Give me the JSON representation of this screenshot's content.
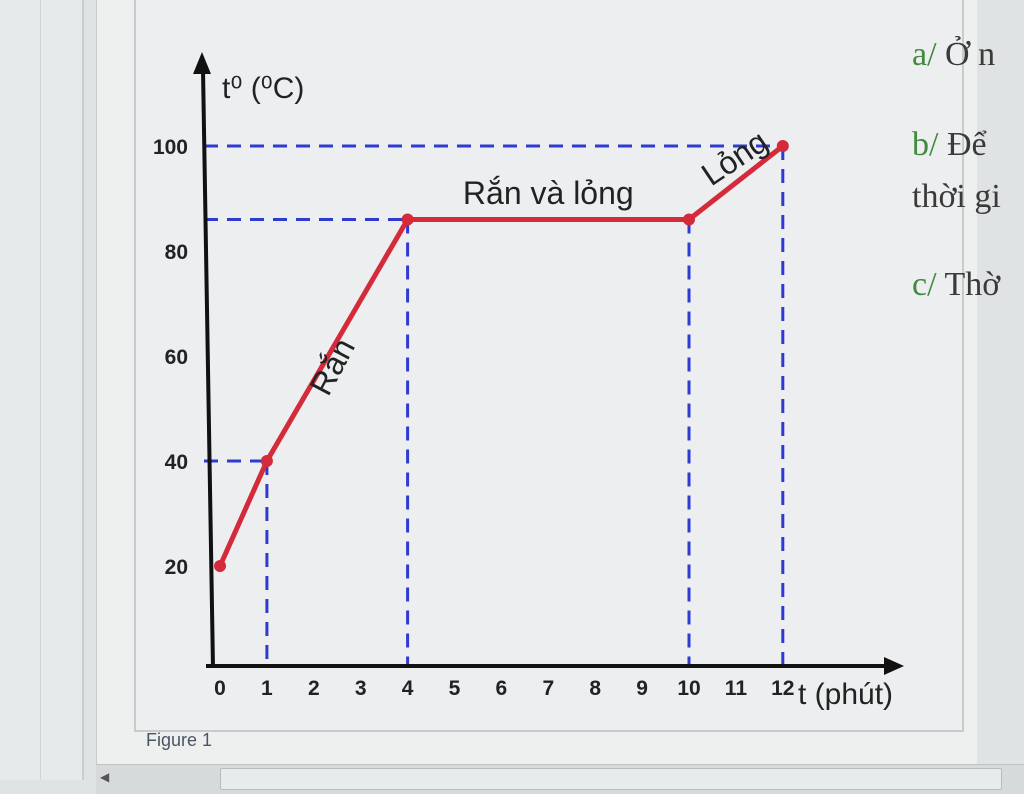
{
  "caption": "Figure 1",
  "questions": [
    {
      "label": "a/",
      "text": "Ở n"
    },
    {
      "label": "b/",
      "text": "Để"
    },
    {
      "label": "",
      "text": "thời gi"
    },
    {
      "label": "c/",
      "text": "Thờ"
    }
  ],
  "chart_data": {
    "type": "line",
    "xlabel": "t (phút)",
    "ylabel": "t⁰ (⁰C)",
    "x_ticks": [
      0,
      1,
      2,
      3,
      4,
      5,
      6,
      7,
      8,
      9,
      10,
      11,
      12
    ],
    "y_ticks": [
      20,
      40,
      60,
      80,
      100
    ],
    "series": [
      {
        "x": [
          0,
          1,
          4,
          10,
          12
        ],
        "y": [
          20,
          40,
          86,
          86,
          100
        ],
        "color": "#d42a3a"
      }
    ],
    "reference_lines": [
      {
        "axis": "y",
        "value": 40,
        "to_x": 1
      },
      {
        "axis": "y",
        "value": 86,
        "to_x": 10
      },
      {
        "axis": "y",
        "value": 100,
        "to_x": 12
      },
      {
        "axis": "x",
        "value": 1
      },
      {
        "axis": "x",
        "value": 4
      },
      {
        "axis": "x",
        "value": 10
      },
      {
        "axis": "x",
        "value": 12
      }
    ],
    "reference_color": "#2e3ad0",
    "phase_labels": [
      {
        "text": "Rắn",
        "x": 2.6,
        "y": 57,
        "angle": -62
      },
      {
        "text": "Rắn và lỏng",
        "x": 7.0,
        "y": 89,
        "angle": 0
      },
      {
        "text": "Lỏng",
        "x": 11.1,
        "y": 96,
        "angle": -34
      }
    ]
  }
}
